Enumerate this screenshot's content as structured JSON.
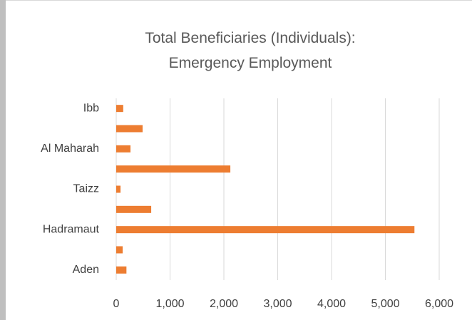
{
  "chart_data": {
    "type": "bar",
    "orientation": "horizontal",
    "title": "Total Beneficiaries (Individuals): Emergency Employment",
    "categories": [
      "Aden",
      null,
      "Hadramaut",
      null,
      "Taizz",
      null,
      "Al Maharah",
      null,
      "Ibb"
    ],
    "values": [
      190,
      120,
      5540,
      650,
      80,
      2120,
      265,
      490,
      130
    ],
    "color": "#ed7d31",
    "xlim": [
      0,
      6000
    ],
    "xticks": [
      0,
      {
        "value": 1000,
        "label": "1,000"
      },
      {
        "value": 2000,
        "label": "2,000"
      },
      {
        "value": 3000,
        "label": "3,000"
      },
      {
        "value": 4000,
        "label": "4,000"
      },
      {
        "value": 5000,
        "label": "5,000"
      },
      {
        "value": 6000,
        "label": "6,000"
      }
    ],
    "grid": true
  }
}
